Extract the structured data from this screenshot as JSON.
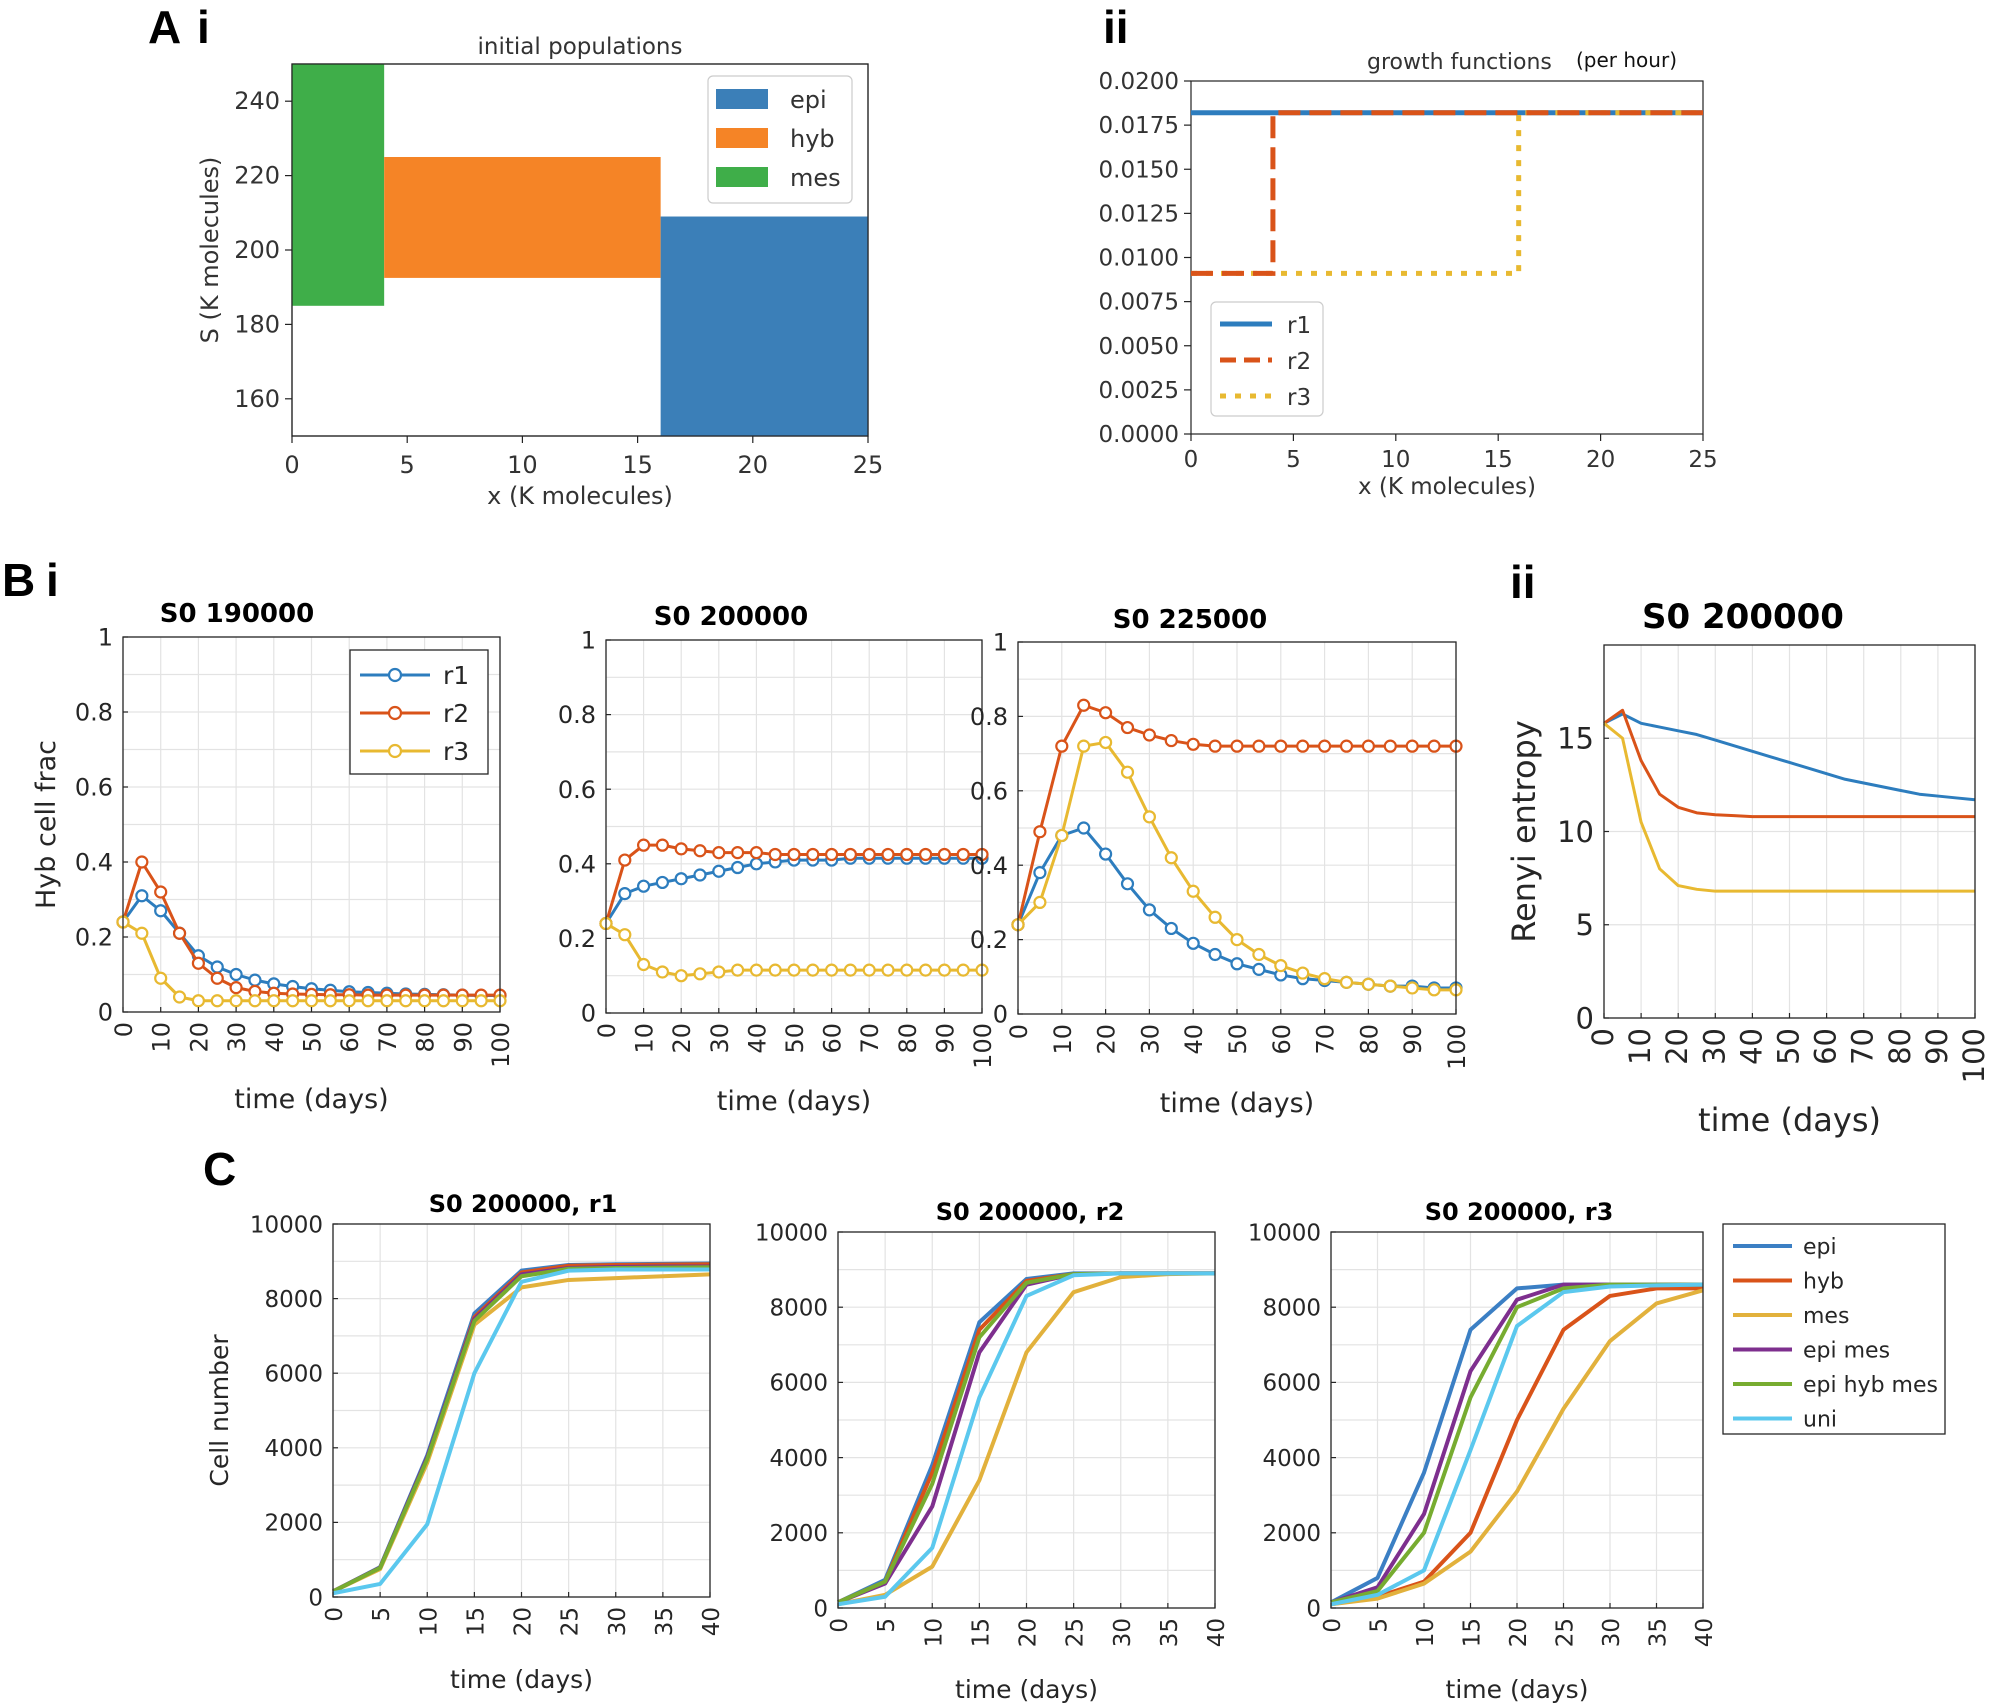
{
  "panel_labels": {
    "A": "A",
    "A_i": "i",
    "A_ii": "ii",
    "B": "B",
    "B_i": "i",
    "B_ii": "ii",
    "C": "C"
  },
  "colors": {
    "epi": "#3b7fb8",
    "hyb": "#f58426",
    "mes": "#3fae49",
    "r1": "#2d7dbe",
    "r2": "#d95319",
    "r3": "#e8b931",
    "epi_mes": "#7e2f8e",
    "epi_hyb_mes": "#77ac30",
    "uni": "#5bc8ee"
  },
  "chart_data": [
    {
      "id": "Ai",
      "type": "bar",
      "title": "initial populations",
      "xlabel": "x (K molecules)",
      "ylabel": "S (K molecules)",
      "xlim": [
        0,
        25
      ],
      "ylim": [
        150,
        250
      ],
      "xticks": [
        "0",
        "5",
        "10",
        "15",
        "20",
        "25"
      ],
      "yticks": [
        "160",
        "180",
        "200",
        "220",
        "240"
      ],
      "legend": [
        "epi",
        "hyb",
        "mes"
      ],
      "rects": [
        {
          "name": "mes",
          "x0": 0,
          "x1": 4,
          "y0": 185,
          "y1": 250
        },
        {
          "name": "hyb",
          "x0": 4,
          "x1": 16,
          "y0": 192.5,
          "y1": 225
        },
        {
          "name": "epi",
          "x0": 16,
          "x1": 25,
          "y0": 150,
          "y1": 209
        }
      ]
    },
    {
      "id": "Aii",
      "type": "line",
      "title": "growth functions",
      "title_suffix": "(per hour)",
      "xlabel": "x (K molecules)",
      "ylabel": "",
      "xlim": [
        0,
        25
      ],
      "ylim": [
        0,
        0.02
      ],
      "xticks": [
        "0",
        "5",
        "10",
        "15",
        "20",
        "25"
      ],
      "yticks": [
        "0.0000",
        "0.0025",
        "0.0050",
        "0.0075",
        "0.0100",
        "0.0125",
        "0.0150",
        "0.0175",
        "0.0200"
      ],
      "legend": [
        "r1",
        "r2",
        "r3"
      ],
      "series": [
        {
          "name": "r1",
          "x": [
            0,
            25
          ],
          "y": [
            0.0182,
            0.0182
          ]
        },
        {
          "name": "r2",
          "x": [
            0,
            4,
            4,
            25
          ],
          "y": [
            0.0091,
            0.0091,
            0.0182,
            0.0182
          ]
        },
        {
          "name": "r3",
          "x": [
            0,
            16,
            16,
            25
          ],
          "y": [
            0.0091,
            0.0091,
            0.0182,
            0.0182
          ]
        }
      ]
    },
    {
      "id": "Bi1",
      "type": "line",
      "title": "S0 190000",
      "xlabel": "time (days)",
      "ylabel": "Hyb cell frac",
      "xlim": [
        0,
        100
      ],
      "ylim": [
        0,
        1
      ],
      "xticks": [
        "0",
        "10",
        "20",
        "30",
        "40",
        "50",
        "60",
        "70",
        "80",
        "90",
        "100"
      ],
      "yticks": [
        "0",
        "0.2",
        "0.4",
        "0.6",
        "0.8",
        "1"
      ],
      "legend": [
        "r1",
        "r2",
        "r3"
      ],
      "x": [
        0,
        5,
        10,
        15,
        20,
        25,
        30,
        35,
        40,
        45,
        50,
        55,
        60,
        65,
        70,
        75,
        80,
        85,
        90,
        95,
        100
      ],
      "series": [
        {
          "name": "r1",
          "values": [
            0.24,
            0.31,
            0.27,
            0.21,
            0.15,
            0.12,
            0.1,
            0.085,
            0.075,
            0.068,
            0.062,
            0.058,
            0.054,
            0.052,
            0.05,
            0.048,
            0.047,
            0.046,
            0.045,
            0.044,
            0.044
          ]
        },
        {
          "name": "r2",
          "values": [
            0.24,
            0.4,
            0.32,
            0.21,
            0.13,
            0.09,
            0.065,
            0.055,
            0.05,
            0.048,
            0.047,
            0.046,
            0.046,
            0.045,
            0.045,
            0.045,
            0.045,
            0.045,
            0.045,
            0.045,
            0.045
          ]
        },
        {
          "name": "r3",
          "values": [
            0.24,
            0.21,
            0.09,
            0.04,
            0.03,
            0.03,
            0.03,
            0.03,
            0.03,
            0.03,
            0.03,
            0.03,
            0.03,
            0.03,
            0.03,
            0.03,
            0.03,
            0.03,
            0.03,
            0.03,
            0.03
          ]
        }
      ]
    },
    {
      "id": "Bi2",
      "type": "line",
      "title": "S0 200000",
      "xlabel": "time (days)",
      "ylabel": "",
      "xlim": [
        0,
        100
      ],
      "ylim": [
        0,
        1
      ],
      "xticks": [
        "0",
        "10",
        "20",
        "30",
        "40",
        "50",
        "60",
        "70",
        "80",
        "90",
        "100"
      ],
      "yticks": [
        "0",
        "0.2",
        "0.4",
        "0.6",
        "0.8",
        "1"
      ],
      "x": [
        0,
        5,
        10,
        15,
        20,
        25,
        30,
        35,
        40,
        45,
        50,
        55,
        60,
        65,
        70,
        75,
        80,
        85,
        90,
        95,
        100
      ],
      "series": [
        {
          "name": "r1",
          "values": [
            0.24,
            0.32,
            0.34,
            0.35,
            0.36,
            0.37,
            0.38,
            0.39,
            0.4,
            0.405,
            0.41,
            0.41,
            0.41,
            0.415,
            0.415,
            0.415,
            0.415,
            0.415,
            0.415,
            0.415,
            0.415
          ]
        },
        {
          "name": "r2",
          "values": [
            0.24,
            0.41,
            0.45,
            0.45,
            0.44,
            0.435,
            0.43,
            0.43,
            0.43,
            0.425,
            0.425,
            0.425,
            0.425,
            0.425,
            0.425,
            0.425,
            0.425,
            0.425,
            0.425,
            0.425,
            0.425
          ]
        },
        {
          "name": "r3",
          "values": [
            0.24,
            0.21,
            0.13,
            0.11,
            0.1,
            0.105,
            0.11,
            0.115,
            0.115,
            0.115,
            0.115,
            0.115,
            0.115,
            0.115,
            0.115,
            0.115,
            0.115,
            0.115,
            0.115,
            0.115,
            0.115
          ]
        }
      ]
    },
    {
      "id": "Bi3",
      "type": "line",
      "title": "S0 225000",
      "xlabel": "time (days)",
      "ylabel": "",
      "xlim": [
        0,
        100
      ],
      "ylim": [
        0,
        1
      ],
      "xticks": [
        "0",
        "10",
        "20",
        "30",
        "40",
        "50",
        "60",
        "70",
        "80",
        "90",
        "100"
      ],
      "yticks": [
        "0",
        "0.2",
        "0.4",
        "0.6",
        "0.8",
        "1"
      ],
      "x": [
        0,
        5,
        10,
        15,
        20,
        25,
        30,
        35,
        40,
        45,
        50,
        55,
        60,
        65,
        70,
        75,
        80,
        85,
        90,
        95,
        100
      ],
      "series": [
        {
          "name": "r1",
          "values": [
            0.24,
            0.38,
            0.48,
            0.5,
            0.43,
            0.35,
            0.28,
            0.23,
            0.19,
            0.16,
            0.135,
            0.12,
            0.105,
            0.095,
            0.09,
            0.085,
            0.08,
            0.075,
            0.075,
            0.07,
            0.07
          ]
        },
        {
          "name": "r2",
          "values": [
            0.24,
            0.49,
            0.72,
            0.83,
            0.81,
            0.77,
            0.75,
            0.735,
            0.725,
            0.72,
            0.72,
            0.72,
            0.72,
            0.72,
            0.72,
            0.72,
            0.72,
            0.72,
            0.72,
            0.72,
            0.72
          ]
        },
        {
          "name": "r3",
          "values": [
            0.24,
            0.3,
            0.48,
            0.72,
            0.73,
            0.65,
            0.53,
            0.42,
            0.33,
            0.26,
            0.2,
            0.16,
            0.13,
            0.11,
            0.095,
            0.085,
            0.08,
            0.075,
            0.07,
            0.065,
            0.065
          ]
        }
      ]
    },
    {
      "id": "Bii",
      "type": "line",
      "title": "S0 200000",
      "xlabel": "time (days)",
      "ylabel": "Renyi entropy",
      "xlim": [
        0,
        100
      ],
      "ylim": [
        0,
        20
      ],
      "xticks": [
        "0",
        "10",
        "20",
        "30",
        "40",
        "50",
        "60",
        "70",
        "80",
        "90",
        "100"
      ],
      "yticks": [
        "0",
        "5",
        "10",
        "15"
      ],
      "x": [
        0,
        5,
        10,
        15,
        20,
        25,
        30,
        35,
        40,
        45,
        50,
        55,
        60,
        65,
        70,
        75,
        80,
        85,
        90,
        95,
        100
      ],
      "series": [
        {
          "name": "r1",
          "values": [
            15.8,
            16.3,
            15.8,
            15.6,
            15.4,
            15.2,
            14.9,
            14.6,
            14.3,
            14.0,
            13.7,
            13.4,
            13.1,
            12.8,
            12.6,
            12.4,
            12.2,
            12.0,
            11.9,
            11.8,
            11.7
          ]
        },
        {
          "name": "r2",
          "values": [
            15.8,
            16.5,
            13.8,
            12.0,
            11.3,
            11.0,
            10.9,
            10.85,
            10.8,
            10.8,
            10.8,
            10.8,
            10.8,
            10.8,
            10.8,
            10.8,
            10.8,
            10.8,
            10.8,
            10.8,
            10.8
          ]
        },
        {
          "name": "r3",
          "values": [
            15.8,
            15.0,
            10.5,
            8.0,
            7.1,
            6.9,
            6.8,
            6.8,
            6.8,
            6.8,
            6.8,
            6.8,
            6.8,
            6.8,
            6.8,
            6.8,
            6.8,
            6.8,
            6.8,
            6.8,
            6.8
          ]
        }
      ]
    },
    {
      "id": "C1",
      "type": "line",
      "title": "S0 200000, r1",
      "xlabel": "time (days)",
      "ylabel": "Cell number",
      "xlim": [
        0,
        40
      ],
      "ylim": [
        0,
        10000
      ],
      "xticks": [
        "0",
        "5",
        "10",
        "15",
        "20",
        "25",
        "30",
        "35",
        "40"
      ],
      "yticks": [
        "0",
        "2000",
        "4000",
        "6000",
        "8000",
        "10000"
      ],
      "x": [
        0,
        5,
        10,
        15,
        20,
        25,
        30,
        35,
        40
      ],
      "series": [
        {
          "name": "epi",
          "values": [
            150,
            800,
            3800,
            7600,
            8750,
            8900,
            8920,
            8930,
            8940
          ]
        },
        {
          "name": "hyb",
          "values": [
            150,
            780,
            3700,
            7500,
            8700,
            8880,
            8900,
            8910,
            8920
          ]
        },
        {
          "name": "mes",
          "values": [
            150,
            750,
            3600,
            7300,
            8300,
            8500,
            8550,
            8600,
            8650
          ]
        },
        {
          "name": "epi mes",
          "values": [
            150,
            790,
            3750,
            7450,
            8650,
            8820,
            8850,
            8860,
            8860
          ]
        },
        {
          "name": "epi hyb mes",
          "values": [
            150,
            780,
            3700,
            7400,
            8600,
            8800,
            8820,
            8830,
            8840
          ]
        },
        {
          "name": "uni",
          "values": [
            100,
            350,
            1950,
            6000,
            8450,
            8750,
            8780,
            8780,
            8780
          ]
        }
      ]
    },
    {
      "id": "C2",
      "type": "line",
      "title": "S0 200000, r2",
      "xlabel": "time (days)",
      "ylabel": "",
      "xlim": [
        0,
        40
      ],
      "ylim": [
        0,
        10000
      ],
      "xticks": [
        "0",
        "5",
        "10",
        "15",
        "20",
        "25",
        "30",
        "35",
        "40"
      ],
      "yticks": [
        "0",
        "2000",
        "4000",
        "6000",
        "8000",
        "10000"
      ],
      "x": [
        0,
        5,
        10,
        15,
        20,
        25,
        30,
        35,
        40
      ],
      "series": [
        {
          "name": "epi",
          "values": [
            150,
            750,
            3800,
            7600,
            8750,
            8900,
            8900,
            8900,
            8900
          ]
        },
        {
          "name": "hyb",
          "values": [
            150,
            700,
            3600,
            7400,
            8700,
            8880,
            8900,
            8900,
            8900
          ]
        },
        {
          "name": "mes",
          "values": [
            100,
            350,
            1100,
            3400,
            6800,
            8400,
            8800,
            8880,
            8900
          ]
        },
        {
          "name": "epi mes",
          "values": [
            150,
            650,
            2700,
            6800,
            8600,
            8880,
            8900,
            8900,
            8900
          ]
        },
        {
          "name": "epi hyb mes",
          "values": [
            150,
            700,
            3300,
            7200,
            8650,
            8880,
            8900,
            8900,
            8900
          ]
        },
        {
          "name": "uni",
          "values": [
            100,
            300,
            1600,
            5600,
            8300,
            8850,
            8900,
            8900,
            8900
          ]
        }
      ]
    },
    {
      "id": "C3",
      "type": "line",
      "title": "S0 200000, r3",
      "xlabel": "time (days)",
      "ylabel": "",
      "xlim": [
        0,
        40
      ],
      "ylim": [
        0,
        10000
      ],
      "xticks": [
        "0",
        "5",
        "10",
        "15",
        "20",
        "25",
        "30",
        "35",
        "40"
      ],
      "yticks": [
        "0",
        "2000",
        "4000",
        "6000",
        "8000",
        "10000"
      ],
      "legend": [
        "epi",
        "hyb",
        "mes",
        "epi mes",
        "epi hyb mes",
        "uni"
      ],
      "x": [
        0,
        5,
        10,
        15,
        20,
        25,
        30,
        35,
        40
      ],
      "series": [
        {
          "name": "epi",
          "values": [
            150,
            800,
            3600,
            7400,
            8500,
            8600,
            8600,
            8600,
            8600
          ]
        },
        {
          "name": "hyb",
          "values": [
            100,
            300,
            700,
            2000,
            5000,
            7400,
            8300,
            8500,
            8500
          ]
        },
        {
          "name": "mes",
          "values": [
            100,
            250,
            650,
            1500,
            3100,
            5300,
            7100,
            8100,
            8450
          ]
        },
        {
          "name": "epi mes",
          "values": [
            150,
            550,
            2500,
            6300,
            8200,
            8600,
            8600,
            8600,
            8600
          ]
        },
        {
          "name": "epi hyb mes",
          "values": [
            150,
            450,
            2000,
            5600,
            8000,
            8500,
            8600,
            8600,
            8600
          ]
        },
        {
          "name": "uni",
          "values": [
            100,
            350,
            1000,
            4200,
            7500,
            8400,
            8550,
            8580,
            8600
          ]
        }
      ]
    }
  ]
}
